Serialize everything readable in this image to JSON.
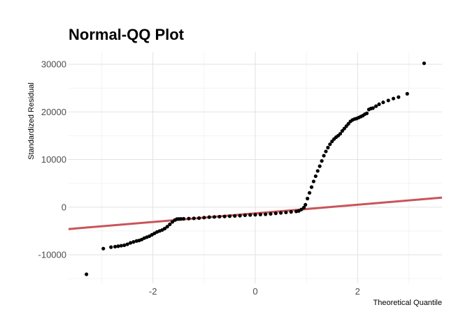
{
  "chart_data": {
    "type": "scatter",
    "title": "Normal-QQ Plot",
    "xlabel": "Theoretical Quantile",
    "ylabel": "Standardized Residual",
    "xlim": [
      -3.65,
      3.65
    ],
    "ylim": [
      -16000,
      32500
    ],
    "x_ticks": [
      -2,
      0,
      2
    ],
    "x_tick_labels": [
      "-2",
      "0",
      "2"
    ],
    "y_ticks": [
      -10000,
      0,
      10000,
      20000,
      30000
    ],
    "y_tick_labels": [
      "-10000",
      "0",
      "10000",
      "20000",
      "30000"
    ],
    "grid": true,
    "colors": {
      "points": "#000000",
      "reference_line": "#c8555a"
    },
    "reference_line": {
      "x": [
        -3.65,
        3.65
      ],
      "y": [
        -4600,
        2000
      ]
    },
    "series": [
      {
        "x": [
          -3.3,
          -2.97,
          -2.82,
          -2.74,
          -2.68,
          -2.62,
          -2.56,
          -2.5,
          -2.44,
          -2.38,
          -2.32,
          -2.27,
          -2.22,
          -2.17,
          -2.12,
          -2.07,
          -2.02,
          -1.97,
          -1.92,
          -1.87,
          -1.82,
          -1.77,
          -1.72,
          -1.67,
          -1.62,
          -1.57,
          -1.53,
          -1.49,
          -1.45,
          -1.4,
          -1.3,
          -1.2,
          -1.1,
          -1.0,
          -0.9,
          -0.8,
          -0.7,
          -0.6,
          -0.5,
          -0.4,
          -0.3,
          -0.2,
          -0.1,
          0.0,
          0.1,
          0.2,
          0.3,
          0.4,
          0.5,
          0.6,
          0.7,
          0.8,
          0.85,
          0.9,
          0.95,
          0.98,
          1.02,
          1.06,
          1.1,
          1.14,
          1.18,
          1.22,
          1.26,
          1.3,
          1.34,
          1.38,
          1.42,
          1.46,
          1.5,
          1.54,
          1.58,
          1.62,
          1.66,
          1.7,
          1.74,
          1.78,
          1.82,
          1.86,
          1.9,
          1.94,
          1.98,
          2.02,
          2.06,
          2.1,
          2.14,
          2.18,
          2.22,
          2.26,
          2.3,
          2.36,
          2.42,
          2.5,
          2.6,
          2.7,
          2.8,
          2.97,
          3.3
        ],
        "y": [
          -14100,
          -8700,
          -8400,
          -8300,
          -8200,
          -8100,
          -8000,
          -7800,
          -7500,
          -7300,
          -7100,
          -7000,
          -6800,
          -6500,
          -6300,
          -6100,
          -5800,
          -5500,
          -5200,
          -5000,
          -4800,
          -4500,
          -4100,
          -3600,
          -3100,
          -2700,
          -2500,
          -2480,
          -2470,
          -2450,
          -2400,
          -2350,
          -2300,
          -2200,
          -2100,
          -2050,
          -2000,
          -1950,
          -1900,
          -1850,
          -1800,
          -1700,
          -1650,
          -1600,
          -1550,
          -1500,
          -1400,
          -1300,
          -1200,
          -1100,
          -1000,
          -900,
          -800,
          -500,
          -100,
          500,
          1800,
          3000,
          4200,
          5400,
          6500,
          7600,
          8600,
          9700,
          10800,
          11700,
          12500,
          13200,
          13800,
          14300,
          14700,
          15000,
          15400,
          16000,
          16500,
          17000,
          17500,
          18000,
          18300,
          18500,
          18600,
          18800,
          19000,
          19200,
          19500,
          19700,
          20500,
          20700,
          20800,
          21200,
          21600,
          22000,
          22400,
          22800,
          23100,
          23800,
          30200
        ]
      }
    ]
  }
}
